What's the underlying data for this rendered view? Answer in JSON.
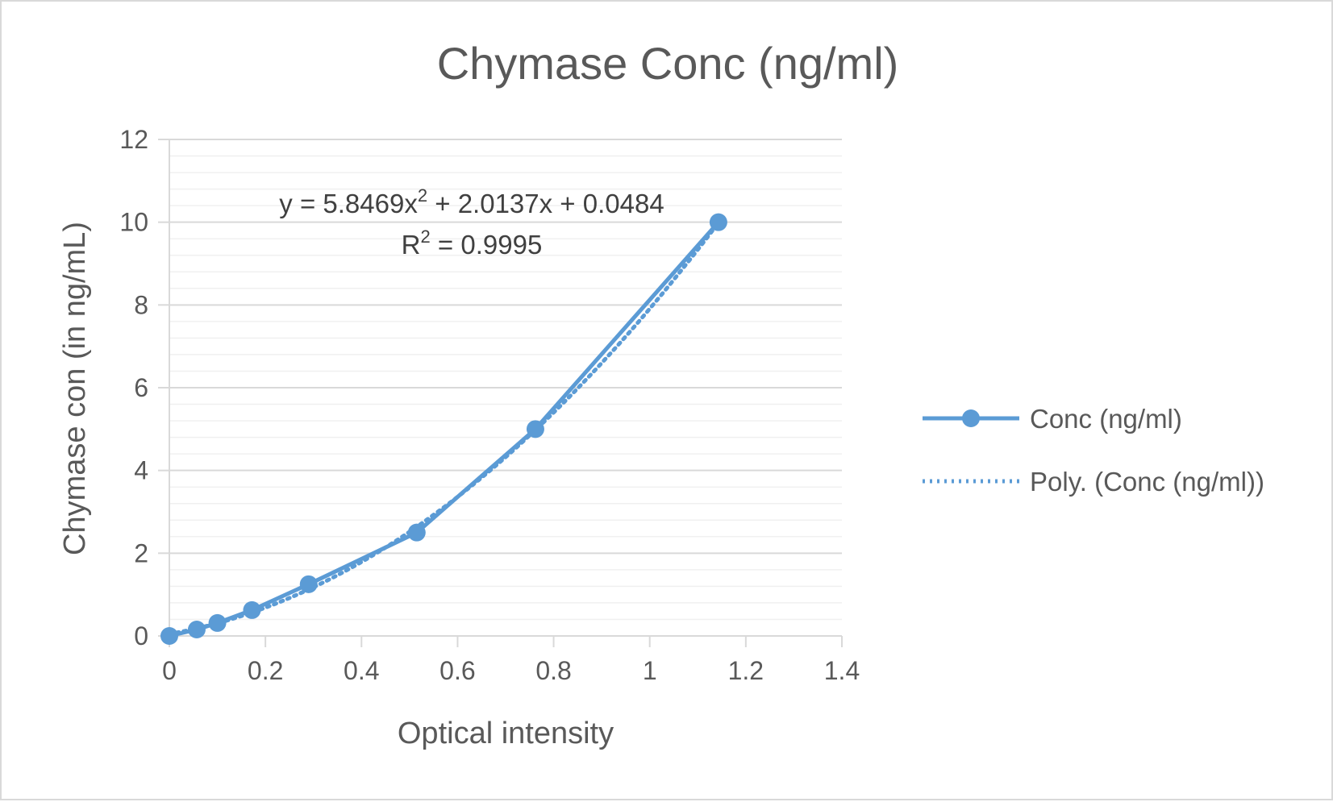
{
  "chart_data": {
    "type": "scatter",
    "title": "Chymase Conc (ng/ml)",
    "xlabel": "Optical intensity",
    "ylabel": "Chymase con (in ng/mL)",
    "xlim": [
      0,
      1.4
    ],
    "ylim": [
      0,
      12
    ],
    "x_ticks": [
      "0",
      "0.2",
      "0.4",
      "0.6",
      "0.8",
      "1",
      "1.2",
      "1.4"
    ],
    "y_ticks": [
      "0",
      "2",
      "4",
      "6",
      "8",
      "10",
      "12"
    ],
    "grid": true,
    "legend_position": "right",
    "series": [
      {
        "name": "Conc (ng/ml)",
        "style": "line-with-markers",
        "color": "#5b9bd5",
        "x": [
          0,
          0.057,
          0.1,
          0.172,
          0.29,
          0.515,
          0.762,
          1.143
        ],
        "y": [
          0,
          0.156,
          0.313,
          0.625,
          1.25,
          2.5,
          5,
          10
        ]
      },
      {
        "name": "Poly. (Conc (ng/ml))",
        "style": "dotted-trendline",
        "color": "#5b9bd5",
        "coefficients": {
          "a": 5.8469,
          "b": 2.0137,
          "c": 0.0484
        }
      }
    ],
    "annotations": {
      "equation_main": "y = 5.8469x",
      "equation_sup": "2",
      "equation_rest": " + 2.0137x + 0.0484",
      "r2_main": "R",
      "r2_sup": "2",
      "r2_rest": " = 0.9995"
    }
  }
}
